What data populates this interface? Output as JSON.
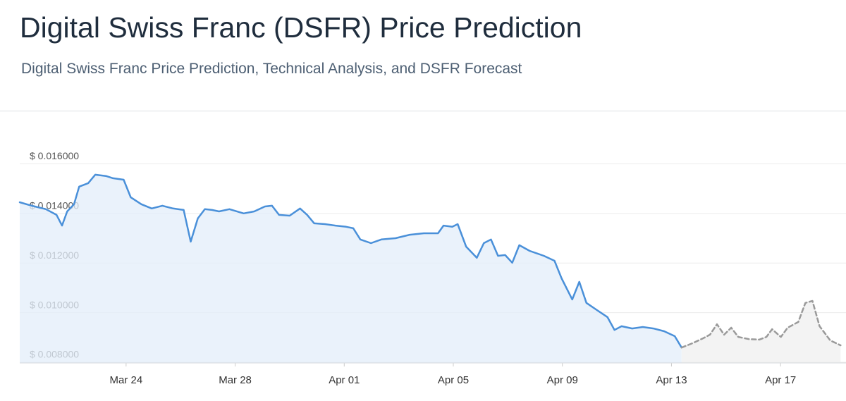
{
  "chart_data": {
    "type": "line",
    "title": "Digital Swiss Franc (DSFR) Price Prediction",
    "subtitle": "Digital Swiss Franc Price Prediction, Technical Analysis, and DSFR Forecast",
    "xlim": [
      0.1,
      30.4
    ],
    "xticks": [
      {
        "value": 4,
        "label": "Mar 24"
      },
      {
        "value": 8,
        "label": "Mar 28"
      },
      {
        "value": 12,
        "label": "Apr 01"
      },
      {
        "value": 16,
        "label": "Apr 05"
      },
      {
        "value": 20,
        "label": "Apr 09"
      },
      {
        "value": 24,
        "label": "Apr 13"
      },
      {
        "value": 28,
        "label": "Apr 17"
      }
    ],
    "ylim": [
      0.00797,
      0.01678
    ],
    "yticks": [
      {
        "value": 0.008,
        "label": "$ 0.008000"
      },
      {
        "value": 0.01,
        "label": "$ 0.010000"
      },
      {
        "value": 0.012,
        "label": "$ 0.012000"
      },
      {
        "value": 0.014,
        "label": "$ 0.014000"
      },
      {
        "value": 0.016,
        "label": "$ 0.016000"
      }
    ],
    "grid": true,
    "series": [
      {
        "color": "#4a90d9",
        "fill": "#e3eef9",
        "line_style": "solid",
        "x": [
          0.1,
          0.54,
          1.06,
          1.45,
          1.65,
          1.84,
          2.09,
          2.28,
          2.61,
          2.87,
          3.26,
          3.52,
          3.91,
          4.17,
          4.56,
          4.94,
          5.33,
          5.72,
          6.11,
          6.37,
          6.63,
          6.89,
          7.15,
          7.41,
          7.79,
          8.31,
          8.7,
          9.09,
          9.35,
          9.61,
          10.0,
          10.38,
          10.64,
          10.9,
          11.29,
          11.68,
          12.07,
          12.33,
          12.59,
          12.98,
          13.36,
          13.88,
          14.4,
          14.92,
          15.44,
          15.64,
          15.96,
          16.16,
          16.47,
          16.86,
          17.12,
          17.38,
          17.64,
          17.9,
          18.16,
          18.42,
          18.8,
          19.32,
          19.71,
          19.97,
          20.36,
          20.62,
          20.88,
          21.27,
          21.65,
          21.91,
          22.17,
          22.56,
          22.95,
          23.34,
          23.73,
          24.12,
          24.37
        ],
        "values": [
          0.01445,
          0.01431,
          0.01417,
          0.01394,
          0.01351,
          0.01408,
          0.01437,
          0.01508,
          0.01522,
          0.01556,
          0.01551,
          0.01542,
          0.01536,
          0.01465,
          0.01437,
          0.0142,
          0.01431,
          0.0142,
          0.01414,
          0.01286,
          0.0138,
          0.01417,
          0.01414,
          0.01408,
          0.01417,
          0.014,
          0.01408,
          0.01428,
          0.01431,
          0.01394,
          0.01391,
          0.0142,
          0.01394,
          0.0136,
          0.01357,
          0.01351,
          0.01346,
          0.0134,
          0.01295,
          0.0128,
          0.01295,
          0.013,
          0.01314,
          0.0132,
          0.0132,
          0.01351,
          0.01346,
          0.01357,
          0.01266,
          0.01221,
          0.0128,
          0.01295,
          0.01229,
          0.01232,
          0.01201,
          0.01272,
          0.01249,
          0.01229,
          0.01209,
          0.01138,
          0.01053,
          0.01124,
          0.01039,
          0.0101,
          0.00982,
          0.0093,
          0.00945,
          0.00936,
          0.00942,
          0.00936,
          0.00925,
          0.00905,
          0.00859
        ]
      },
      {
        "color": "#9a9a9a",
        "fill": "#efefef",
        "line_style": "dashed",
        "x": [
          24.37,
          24.76,
          25.15,
          25.41,
          25.67,
          25.93,
          26.19,
          26.45,
          26.84,
          27.22,
          27.48,
          27.69,
          28.01,
          28.26,
          28.65,
          28.91,
          29.17,
          29.43,
          29.82,
          30.2
        ],
        "values": [
          0.00859,
          0.00876,
          0.00896,
          0.00911,
          0.00953,
          0.00911,
          0.00939,
          0.00902,
          0.00893,
          0.00891,
          0.00902,
          0.00933,
          0.00902,
          0.00939,
          0.00962,
          0.01039,
          0.01047,
          0.00945,
          0.00888,
          0.00868
        ]
      }
    ]
  }
}
